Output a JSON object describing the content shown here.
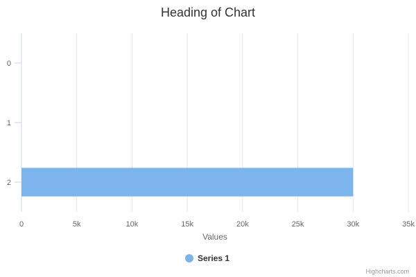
{
  "chart_data": {
    "type": "bar",
    "orientation": "horizontal",
    "title": "Heading of Chart",
    "categories": [
      "0",
      "1",
      "2"
    ],
    "series": [
      {
        "name": "Series 1",
        "values": [
          0,
          0,
          30000
        ],
        "color": "#7cb5ec"
      }
    ],
    "value_axis": {
      "label": "Values",
      "min": 0,
      "max": 35000,
      "tick_values": [
        0,
        5000,
        10000,
        15000,
        20000,
        25000,
        30000,
        35000
      ],
      "tick_labels": [
        "0",
        "5k",
        "10k",
        "15k",
        "20k",
        "25k",
        "30k",
        "35k"
      ],
      "grid": true
    },
    "legend": {
      "position": "bottom-center"
    },
    "credits": "Highcharts.com"
  }
}
